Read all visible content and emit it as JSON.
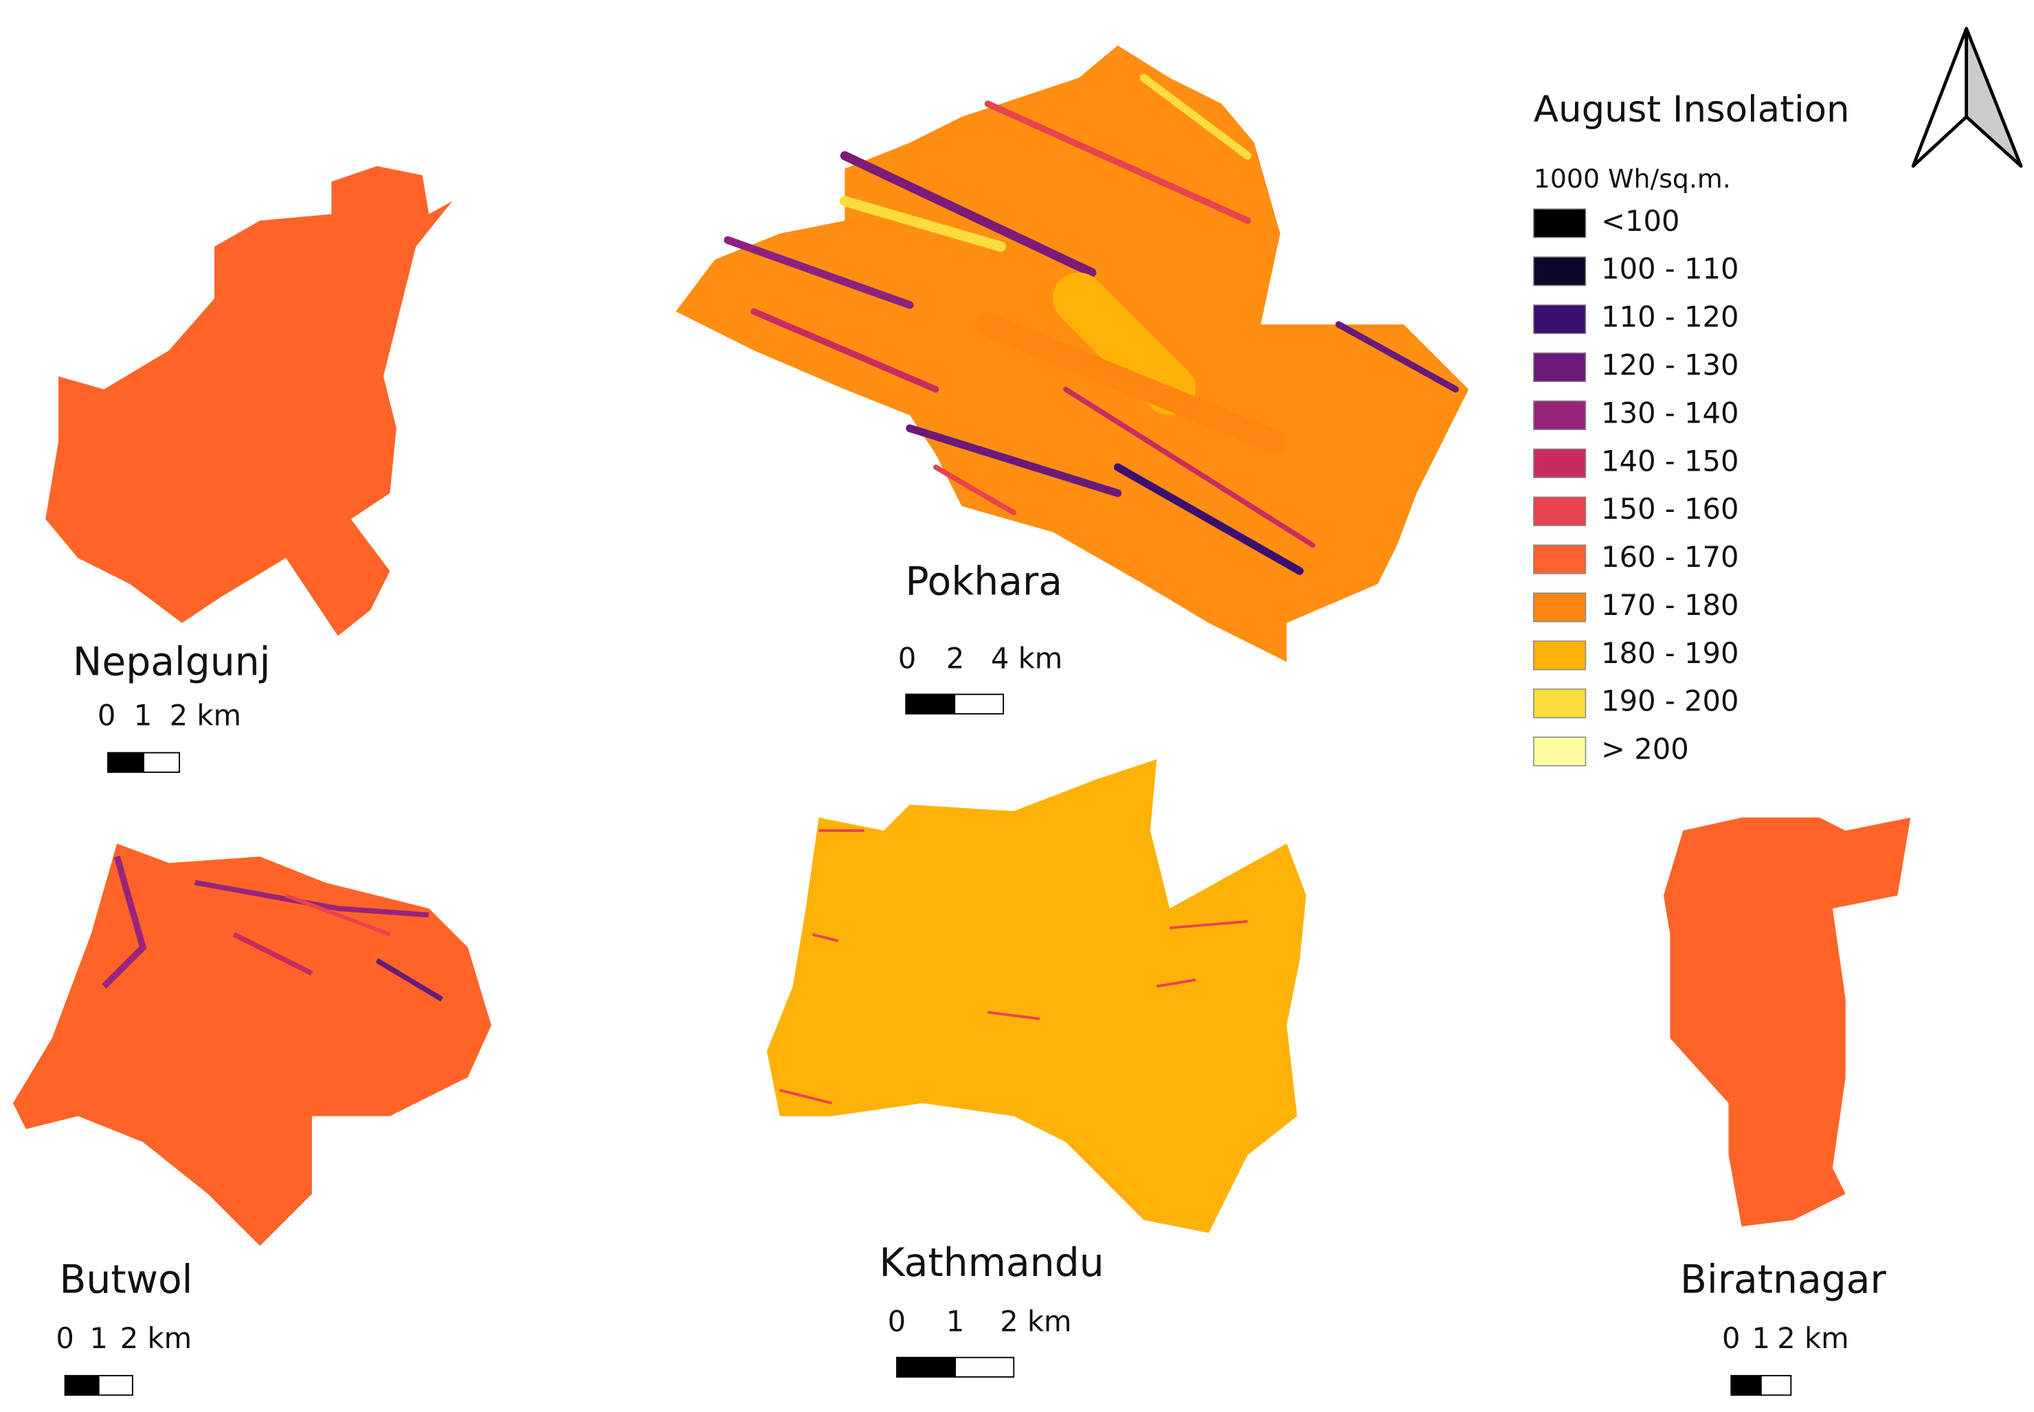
{
  "legend": {
    "title": "August Insolation",
    "unit": "1000 Wh/sq.m.",
    "items": [
      {
        "label": "<100",
        "color": "#000000"
      },
      {
        "label": "100 - 110",
        "color": "#0d0829"
      },
      {
        "label": "110 - 120",
        "color": "#3b0f70"
      },
      {
        "label": "120 - 130",
        "color": "#6a1a7a"
      },
      {
        "label": "130 - 140",
        "color": "#98247c"
      },
      {
        "label": "140 - 150",
        "color": "#c92d5f"
      },
      {
        "label": "150 - 160",
        "color": "#e8434e"
      },
      {
        "label": "160 - 170",
        "color": "#fe6230"
      },
      {
        "label": "170 - 180",
        "color": "#ff8610"
      },
      {
        "label": "180 - 190",
        "color": "#feb208"
      },
      {
        "label": "190 - 200",
        "color": "#fddd3c"
      },
      {
        "label": "> 200",
        "color": "#fffca0"
      }
    ]
  },
  "maps": [
    {
      "name": "Nepalgunj",
      "scale_labels": [
        "0",
        "1",
        "2 km"
      ]
    },
    {
      "name": "Pokhara",
      "scale_labels": [
        "0",
        "2",
        "4 km"
      ]
    },
    {
      "name": "Butwol",
      "scale_labels": [
        "0",
        "1",
        "2 km"
      ]
    },
    {
      "name": "Kathmandu",
      "scale_labels": [
        "0",
        "1",
        "2 km"
      ]
    },
    {
      "name": "Biratnagar",
      "scale_labels": [
        "0",
        "1",
        "2 km"
      ]
    }
  ]
}
